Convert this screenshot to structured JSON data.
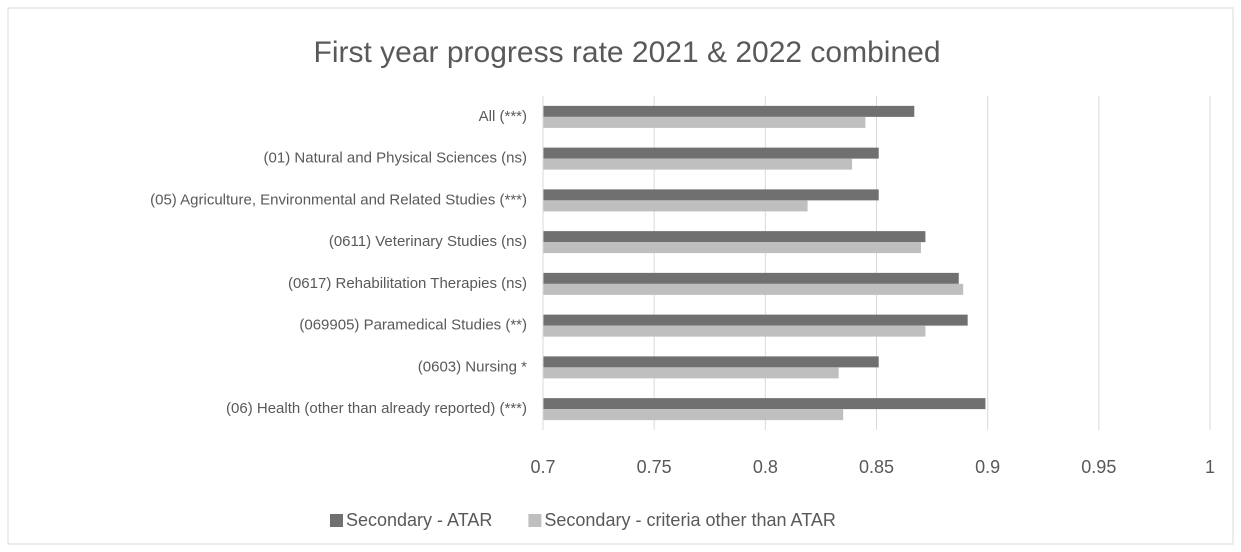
{
  "chart_data": {
    "type": "hbar",
    "title": "First year progress rate 2021 & 2022 combined",
    "categories": [
      "All (***)",
      "(01) Natural and Physical Sciences (ns)",
      "(05) Agriculture, Environmental and Related Studies (***)",
      "(0611) Veterinary Studies (ns)",
      "(0617) Rehabilitation Therapies (ns)",
      "(069905) Paramedical Studies (**)",
      "(0603) Nursing *",
      "(06) Health (other than already reported) (***)"
    ],
    "series": [
      {
        "name": "Secondary - ATAR",
        "color": "#707070",
        "values": [
          0.867,
          0.851,
          0.851,
          0.872,
          0.887,
          0.891,
          0.851,
          0.899
        ]
      },
      {
        "name": "Secondary - criteria other than ATAR",
        "color": "#bfbfbf",
        "values": [
          0.845,
          0.839,
          0.819,
          0.87,
          0.889,
          0.872,
          0.833,
          0.835
        ]
      }
    ],
    "xlim": [
      0.7,
      1
    ],
    "xticks": [
      0.7,
      0.75,
      0.8,
      0.85,
      0.9,
      0.95,
      1
    ],
    "grid": true,
    "legend": "bottom"
  }
}
